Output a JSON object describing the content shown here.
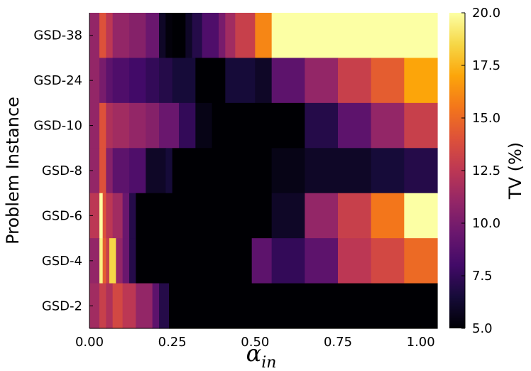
{
  "chart_data": {
    "type": "heatmap",
    "ylabel": "Problem Instance",
    "xlabel_symbol": "α",
    "xlabel_subscript": "in",
    "colorbar_label": "TV (%)",
    "colorscale": "inferno",
    "zlim": [
      5.0,
      20.0
    ],
    "colorbar_ticks": [
      "5.0",
      "7.5",
      "10.0",
      "12.5",
      "15.0",
      "17.5",
      "20.0"
    ],
    "xlim": [
      0.0,
      1.05
    ],
    "x_ticks": [
      "0.00",
      "0.25",
      "0.50",
      "0.75",
      "1.00"
    ],
    "rows": [
      {
        "label": "GSD-38",
        "cells": [
          {
            "x0": 0.0,
            "x1": 0.03,
            "tv": 11.0
          },
          {
            "x0": 0.03,
            "x1": 0.05,
            "tv": 14.0
          },
          {
            "x0": 0.05,
            "x1": 0.07,
            "tv": 12.5
          },
          {
            "x0": 0.07,
            "x1": 0.12,
            "tv": 11.0
          },
          {
            "x0": 0.12,
            "x1": 0.17,
            "tv": 10.5
          },
          {
            "x0": 0.17,
            "x1": 0.21,
            "tv": 9.5
          },
          {
            "x0": 0.21,
            "x1": 0.23,
            "tv": 6.0
          },
          {
            "x0": 0.23,
            "x1": 0.25,
            "tv": 5.2
          },
          {
            "x0": 0.25,
            "x1": 0.29,
            "tv": 5.0
          },
          {
            "x0": 0.29,
            "x1": 0.31,
            "tv": 6.0
          },
          {
            "x0": 0.31,
            "x1": 0.34,
            "tv": 7.0
          },
          {
            "x0": 0.34,
            "x1": 0.39,
            "tv": 8.5
          },
          {
            "x0": 0.39,
            "x1": 0.41,
            "tv": 10.0
          },
          {
            "x0": 0.41,
            "x1": 0.44,
            "tv": 11.5
          },
          {
            "x0": 0.44,
            "x1": 0.5,
            "tv": 13.0
          },
          {
            "x0": 0.5,
            "x1": 0.55,
            "tv": 16.0
          },
          {
            "x0": 0.55,
            "x1": 1.05,
            "tv": 20.0
          }
        ]
      },
      {
        "label": "GSD-24",
        "cells": [
          {
            "x0": 0.0,
            "x1": 0.03,
            "tv": 11.0
          },
          {
            "x0": 0.03,
            "x1": 0.05,
            "tv": 10.0
          },
          {
            "x0": 0.05,
            "x1": 0.07,
            "tv": 9.0
          },
          {
            "x0": 0.07,
            "x1": 0.12,
            "tv": 8.5
          },
          {
            "x0": 0.12,
            "x1": 0.17,
            "tv": 8.0
          },
          {
            "x0": 0.17,
            "x1": 0.21,
            "tv": 7.5
          },
          {
            "x0": 0.21,
            "x1": 0.25,
            "tv": 7.0
          },
          {
            "x0": 0.25,
            "x1": 0.32,
            "tv": 6.5
          },
          {
            "x0": 0.32,
            "x1": 0.41,
            "tv": 5.0
          },
          {
            "x0": 0.41,
            "x1": 0.5,
            "tv": 6.5
          },
          {
            "x0": 0.5,
            "x1": 0.55,
            "tv": 6.0
          },
          {
            "x0": 0.55,
            "x1": 0.65,
            "tv": 9.0
          },
          {
            "x0": 0.65,
            "x1": 0.75,
            "tv": 11.0
          },
          {
            "x0": 0.75,
            "x1": 0.85,
            "tv": 13.0
          },
          {
            "x0": 0.85,
            "x1": 0.95,
            "tv": 14.5
          },
          {
            "x0": 0.95,
            "x1": 1.05,
            "tv": 17.0
          }
        ]
      },
      {
        "label": "GSD-10",
        "cells": [
          {
            "x0": 0.0,
            "x1": 0.03,
            "tv": 11.0
          },
          {
            "x0": 0.03,
            "x1": 0.05,
            "tv": 14.0
          },
          {
            "x0": 0.05,
            "x1": 0.07,
            "tv": 12.0
          },
          {
            "x0": 0.07,
            "x1": 0.12,
            "tv": 11.5
          },
          {
            "x0": 0.12,
            "x1": 0.17,
            "tv": 11.0
          },
          {
            "x0": 0.17,
            "x1": 0.21,
            "tv": 10.5
          },
          {
            "x0": 0.21,
            "x1": 0.27,
            "tv": 9.5
          },
          {
            "x0": 0.27,
            "x1": 0.32,
            "tv": 7.5
          },
          {
            "x0": 0.32,
            "x1": 0.37,
            "tv": 5.5
          },
          {
            "x0": 0.37,
            "x1": 0.65,
            "tv": 5.0
          },
          {
            "x0": 0.65,
            "x1": 0.75,
            "tv": 7.0
          },
          {
            "x0": 0.75,
            "x1": 0.85,
            "tv": 9.0
          },
          {
            "x0": 0.85,
            "x1": 0.95,
            "tv": 11.0
          },
          {
            "x0": 0.95,
            "x1": 1.05,
            "tv": 13.0
          }
        ]
      },
      {
        "label": "GSD-8",
        "cells": [
          {
            "x0": 0.0,
            "x1": 0.03,
            "tv": 11.0
          },
          {
            "x0": 0.03,
            "x1": 0.05,
            "tv": 14.0
          },
          {
            "x0": 0.05,
            "x1": 0.07,
            "tv": 10.5
          },
          {
            "x0": 0.07,
            "x1": 0.12,
            "tv": 9.0
          },
          {
            "x0": 0.12,
            "x1": 0.17,
            "tv": 8.5
          },
          {
            "x0": 0.17,
            "x1": 0.23,
            "tv": 6.0
          },
          {
            "x0": 0.23,
            "x1": 0.25,
            "tv": 6.5
          },
          {
            "x0": 0.25,
            "x1": 0.55,
            "tv": 5.0
          },
          {
            "x0": 0.55,
            "x1": 0.65,
            "tv": 5.5
          },
          {
            "x0": 0.65,
            "x1": 0.75,
            "tv": 6.0
          },
          {
            "x0": 0.75,
            "x1": 0.85,
            "tv": 6.0
          },
          {
            "x0": 0.85,
            "x1": 0.95,
            "tv": 6.5
          },
          {
            "x0": 0.95,
            "x1": 1.05,
            "tv": 7.0
          }
        ]
      },
      {
        "label": "GSD-6",
        "cells": [
          {
            "x0": 0.0,
            "x1": 0.03,
            "tv": 12.5
          },
          {
            "x0": 0.03,
            "x1": 0.04,
            "tv": 20.0
          },
          {
            "x0": 0.04,
            "x1": 0.05,
            "tv": 14.0
          },
          {
            "x0": 0.05,
            "x1": 0.07,
            "tv": 12.5
          },
          {
            "x0": 0.07,
            "x1": 0.1,
            "tv": 11.5
          },
          {
            "x0": 0.1,
            "x1": 0.12,
            "tv": 9.5
          },
          {
            "x0": 0.12,
            "x1": 0.14,
            "tv": 7.0
          },
          {
            "x0": 0.14,
            "x1": 0.55,
            "tv": 5.0
          },
          {
            "x0": 0.55,
            "x1": 0.65,
            "tv": 6.0
          },
          {
            "x0": 0.65,
            "x1": 0.75,
            "tv": 11.0
          },
          {
            "x0": 0.75,
            "x1": 0.85,
            "tv": 13.0
          },
          {
            "x0": 0.85,
            "x1": 0.95,
            "tv": 15.5
          },
          {
            "x0": 0.95,
            "x1": 1.05,
            "tv": 20.0
          }
        ]
      },
      {
        "label": "GSD-4",
        "cells": [
          {
            "x0": 0.0,
            "x1": 0.03,
            "tv": 11.0
          },
          {
            "x0": 0.03,
            "x1": 0.04,
            "tv": 19.5
          },
          {
            "x0": 0.04,
            "x1": 0.05,
            "tv": 14.5
          },
          {
            "x0": 0.05,
            "x1": 0.06,
            "tv": 13.0
          },
          {
            "x0": 0.06,
            "x1": 0.08,
            "tv": 18.5
          },
          {
            "x0": 0.08,
            "x1": 0.1,
            "tv": 11.0
          },
          {
            "x0": 0.1,
            "x1": 0.12,
            "tv": 9.5
          },
          {
            "x0": 0.12,
            "x1": 0.14,
            "tv": 7.0
          },
          {
            "x0": 0.14,
            "x1": 0.49,
            "tv": 5.0
          },
          {
            "x0": 0.49,
            "x1": 0.55,
            "tv": 9.0
          },
          {
            "x0": 0.55,
            "x1": 0.65,
            "tv": 7.5
          },
          {
            "x0": 0.65,
            "x1": 0.75,
            "tv": 9.0
          },
          {
            "x0": 0.75,
            "x1": 0.85,
            "tv": 12.5
          },
          {
            "x0": 0.85,
            "x1": 0.95,
            "tv": 13.5
          },
          {
            "x0": 0.95,
            "x1": 1.05,
            "tv": 15.0
          }
        ]
      },
      {
        "label": "GSD-2",
        "cells": [
          {
            "x0": 0.0,
            "x1": 0.03,
            "tv": 11.5
          },
          {
            "x0": 0.03,
            "x1": 0.05,
            "tv": 13.0
          },
          {
            "x0": 0.05,
            "x1": 0.07,
            "tv": 12.0
          },
          {
            "x0": 0.07,
            "x1": 0.1,
            "tv": 13.5
          },
          {
            "x0": 0.1,
            "x1": 0.14,
            "tv": 12.5
          },
          {
            "x0": 0.14,
            "x1": 0.19,
            "tv": 11.0
          },
          {
            "x0": 0.19,
            "x1": 0.21,
            "tv": 9.0
          },
          {
            "x0": 0.21,
            "x1": 0.24,
            "tv": 7.0
          },
          {
            "x0": 0.24,
            "x1": 1.05,
            "tv": 5.0
          }
        ]
      }
    ]
  }
}
